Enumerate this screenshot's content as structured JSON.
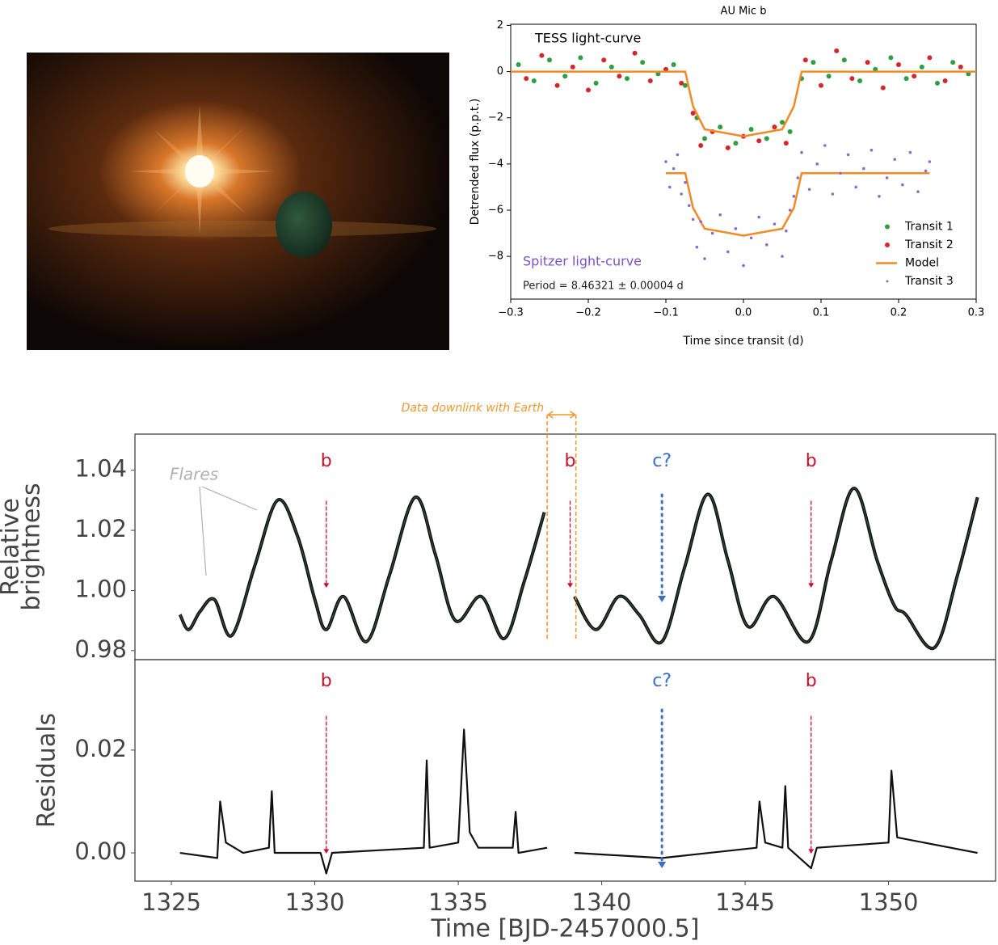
{
  "chart_data": [
    {
      "type": "scatter",
      "title": "AU Mic b",
      "xlabel": "Time since transit (d)",
      "ylabel": "Detrended flux (p.p.t.)",
      "xlim": [
        -0.3,
        0.3
      ],
      "ylim": [
        -9.85,
        2.05
      ],
      "xticks": [
        {
          "value": -0.3,
          "label": "−0.3"
        },
        {
          "value": -0.2,
          "label": "−0.2"
        },
        {
          "value": -0.1,
          "label": "−0.1"
        },
        {
          "value": 0,
          "label": "0.0"
        },
        0.1,
        0.2,
        0.3
      ],
      "yticks": [
        {
          "value": -8,
          "label": "−8"
        },
        {
          "value": -6,
          "label": "−6"
        },
        {
          "value": -4,
          "label": "−4"
        },
        {
          "value": -2,
          "label": "−2"
        },
        0,
        2
      ],
      "legend": "lower right",
      "annotations": [
        {
          "text": "TESS light-curve",
          "color": "#000000"
        },
        {
          "text": "Spitzer light-curve",
          "color": "#7b52c7"
        },
        {
          "text": "Period = 8.46321 ± 0.00004 d",
          "color": "#222222"
        }
      ],
      "series": [
        {
          "name": "Transit 1",
          "color": "#2e9e3e",
          "x": [
            -0.29,
            -0.27,
            -0.25,
            -0.23,
            -0.21,
            -0.19,
            -0.17,
            -0.15,
            -0.13,
            -0.11,
            -0.09,
            -0.075,
            -0.06,
            -0.05,
            -0.03,
            -0.01,
            0.01,
            0.03,
            0.05,
            0.06,
            0.075,
            0.09,
            0.11,
            0.13,
            0.15,
            0.17,
            0.19,
            0.21,
            0.23,
            0.25,
            0.27,
            0.29
          ],
          "values": [
            0.3,
            -0.4,
            0.5,
            -0.2,
            0.6,
            -0.5,
            0.2,
            -0.3,
            0.4,
            -0.1,
            0.3,
            -0.6,
            -2.0,
            -2.9,
            -2.4,
            -3.1,
            -2.5,
            -2.9,
            -2.2,
            -2.6,
            -0.3,
            0.4,
            -0.2,
            0.5,
            -0.4,
            0.1,
            0.6,
            -0.3,
            0.2,
            -0.5,
            0.4,
            -0.1
          ]
        },
        {
          "name": "Transit 2",
          "color": "#d62728",
          "x": [
            -0.28,
            -0.26,
            -0.24,
            -0.22,
            -0.2,
            -0.18,
            -0.16,
            -0.14,
            -0.12,
            -0.1,
            -0.08,
            -0.065,
            -0.055,
            -0.04,
            -0.02,
            0.0,
            0.02,
            0.04,
            0.055,
            0.08,
            0.1,
            0.12,
            0.14,
            0.16,
            0.18,
            0.2,
            0.22,
            0.24,
            0.26,
            0.28
          ],
          "values": [
            -0.3,
            0.7,
            -0.6,
            0.2,
            -0.8,
            0.5,
            -0.2,
            0.8,
            -0.4,
            0.1,
            -0.5,
            -1.8,
            -3.2,
            -2.6,
            -3.3,
            -2.8,
            -3.0,
            -2.4,
            -3.1,
            0.5,
            -0.6,
            0.9,
            -0.3,
            0.4,
            -0.7,
            0.3,
            -0.2,
            0.6,
            -0.4,
            0.2
          ]
        },
        {
          "name": "Model",
          "type": "line",
          "color": "#f08a24",
          "x": [
            -0.3,
            -0.075,
            -0.065,
            -0.05,
            0,
            0.05,
            0.065,
            0.075,
            0.3,
            null,
            -0.1,
            -0.075,
            -0.065,
            -0.05,
            0,
            0.05,
            0.065,
            0.075,
            0.24
          ],
          "values": [
            0,
            0,
            -1.5,
            -2.5,
            -2.8,
            -2.5,
            -1.5,
            0,
            0,
            null,
            -4.4,
            -4.4,
            -5.9,
            -6.8,
            -7.1,
            -6.8,
            -5.9,
            -4.4,
            -4.4
          ]
        },
        {
          "name": "Transit 3",
          "color": "#8c6bd0",
          "x": [
            -0.1,
            -0.095,
            -0.09,
            -0.085,
            -0.08,
            -0.075,
            -0.07,
            -0.065,
            -0.06,
            -0.055,
            -0.05,
            -0.04,
            -0.03,
            -0.02,
            -0.01,
            0.0,
            0.01,
            0.02,
            0.03,
            0.04,
            0.05,
            0.055,
            0.06,
            0.065,
            0.07,
            0.075,
            0.085,
            0.095,
            0.105,
            0.115,
            0.125,
            0.135,
            0.145,
            0.155,
            0.165,
            0.175,
            0.185,
            0.195,
            0.205,
            0.215,
            0.225,
            0.235,
            0.24
          ],
          "values": [
            -3.9,
            -5.0,
            -4.2,
            -3.6,
            -5.3,
            -4.8,
            -5.8,
            -6.4,
            -7.6,
            -6.5,
            -8.1,
            -7.0,
            -6.2,
            -7.8,
            -6.8,
            -8.4,
            -7.2,
            -6.3,
            -7.5,
            -6.6,
            -8.0,
            -6.9,
            -6.0,
            -5.4,
            -4.6,
            -3.5,
            -5.1,
            -4.0,
            -3.2,
            -5.3,
            -4.4,
            -3.6,
            -5.0,
            -4.2,
            -3.4,
            -5.4,
            -4.6,
            -3.8,
            -4.9,
            -3.5,
            -5.2,
            -4.3,
            -3.9
          ]
        }
      ]
    },
    {
      "type": "line",
      "smooth": true,
      "ylabel": [
        "Relative",
        "brightness"
      ],
      "xlim": [
        1323.73,
        1353.73
      ],
      "ylim": [
        0.977,
        1.052
      ],
      "yticks": [
        0.98,
        {
          "value": 1.0,
          "label": "1.00"
        },
        1.02,
        1.04
      ],
      "flares_label": "Flares",
      "downlink": {
        "label": "Data downlink with Earth",
        "x": [
          1338.1,
          1339.1
        ]
      },
      "annotations": [
        {
          "text": "b",
          "x": 1330.4,
          "color": "#c8102e",
          "line_style": "dashed"
        },
        {
          "text": "b",
          "x": 1338.9,
          "color": "#c8102e",
          "line_style": "dashed"
        },
        {
          "text": "c?",
          "x": 1342.1,
          "color": "#3b6fc4",
          "line_style": "dotted"
        },
        {
          "text": "b",
          "x": 1347.3,
          "color": "#c8102e",
          "line_style": "dashed"
        }
      ],
      "series": [
        {
          "color": "#111111",
          "x": [
            1325.3,
            1325.6,
            1326.0,
            1326.5,
            1327.1,
            1327.9,
            1328.7,
            1329.4,
            1330.0,
            1330.4,
            1331.0,
            1331.8,
            1332.6,
            1333.5,
            1334.2,
            1334.9,
            1335.8,
            1336.6,
            1337.3,
            1338.0,
            null,
            1339.05,
            1339.8,
            1340.6,
            1341.3,
            1342.1,
            1342.9,
            1343.7,
            1344.4,
            1345.1,
            1346.0,
            1347.2,
            1348.0,
            1348.8,
            1349.6,
            1350.2,
            1350.6,
            1351.6,
            1352.4,
            1353.1
          ],
          "values": [
            0.992,
            0.987,
            0.993,
            0.997,
            0.985,
            1.008,
            1.03,
            1.018,
            0.997,
            0.987,
            0.998,
            0.983,
            1.005,
            1.031,
            1.012,
            0.99,
            0.998,
            0.984,
            1.003,
            1.026,
            null,
            0.998,
            0.987,
            0.998,
            0.992,
            0.983,
            1.008,
            1.032,
            1.01,
            0.988,
            0.998,
            0.983,
            1.01,
            1.034,
            1.01,
            0.995,
            0.992,
            0.981,
            1.005,
            1.031
          ]
        }
      ]
    },
    {
      "type": "line",
      "ylabel": [
        "Residuals"
      ],
      "xlabel": "Time [BJD-2457000.5]",
      "xlim": [
        1323.73,
        1353.73
      ],
      "ylim": [
        -0.0055,
        0.0376
      ],
      "xticks": [
        1325,
        1330,
        1335,
        1340,
        1345,
        1350
      ],
      "yticks": [
        {
          "value": 0,
          "label": "0.00"
        },
        0.02
      ],
      "annotations": [
        {
          "text": "b",
          "x": 1330.4,
          "color": "#c8102e",
          "line_style": "dashed"
        },
        {
          "text": "c?",
          "x": 1342.1,
          "color": "#3b6fc4",
          "line_style": "dotted"
        },
        {
          "text": "b",
          "x": 1347.3,
          "color": "#c8102e",
          "line_style": "dashed"
        }
      ],
      "series": [
        {
          "color": "#111111",
          "x": [
            1325.3,
            1326.6,
            1326.7,
            1326.9,
            1327.5,
            1328.4,
            1328.5,
            1328.6,
            1330.2,
            1330.4,
            1330.6,
            1333.8,
            1333.9,
            1334.0,
            1335.0,
            1335.2,
            1335.4,
            1335.7,
            1336.9,
            1337.0,
            1337.1,
            1338.1,
            null,
            1339.05,
            1342.1,
            1345.4,
            1345.5,
            1345.7,
            1346.3,
            1346.4,
            1346.5,
            1347.3,
            1347.5,
            1350.0,
            1350.1,
            1350.3,
            1353.1
          ],
          "values": [
            0,
            -0.001,
            0.01,
            0.002,
            0,
            0.001,
            0.012,
            0,
            0,
            -0.004,
            0,
            0.001,
            0.018,
            0.001,
            0.002,
            0.024,
            0.004,
            0.001,
            0.001,
            0.008,
            0,
            0.001,
            null,
            0,
            -0.001,
            0.001,
            0.01,
            0.002,
            0.001,
            0.013,
            0.001,
            -0.003,
            0.001,
            0.002,
            0.016,
            0.003,
            0
          ]
        }
      ]
    }
  ]
}
